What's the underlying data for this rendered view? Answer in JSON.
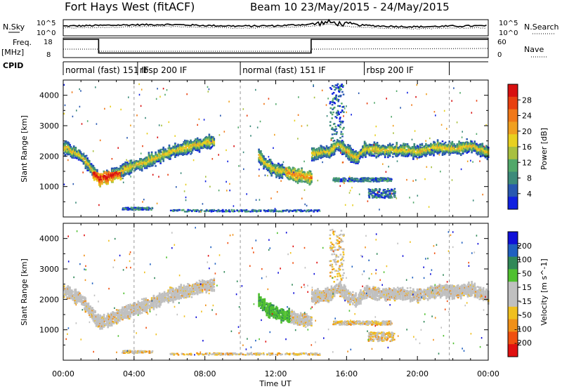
{
  "header": {
    "title": "Fort Hays West (fitACF)",
    "subtitle": "Beam 10 23/May/2015 - 24/May/2015"
  },
  "labels": {
    "nsky": "N.Sky",
    "nsearch": "N.Search",
    "freq": "Freq.",
    "freq_unit": "[MHz]",
    "nave": "Nave",
    "cpid": "CPID",
    "nsky_ticks": [
      "10^5",
      "10^0"
    ],
    "nsearch_ticks": [
      "10^5",
      "10^0"
    ],
    "freq_ticks": [
      "18",
      "8"
    ],
    "nave_ticks": [
      "60",
      "0"
    ]
  },
  "cpid_segments": [
    {
      "label": "normal (fast) 151 IF",
      "start_h": 0
    },
    {
      "label": "rbsp 200 IF",
      "start_h": 4.2
    },
    {
      "label": "normal (fast) 151 IF",
      "start_h": 10.0
    },
    {
      "label": "rbsp 200 IF",
      "start_h": 17.0
    }
  ],
  "colors": {
    "power": [
      "#1020e0",
      "#2858b0",
      "#3c8a7a",
      "#52a86a",
      "#a8c040",
      "#e8d020",
      "#f0a020",
      "#f07818",
      "#e84010",
      "#d81010"
    ],
    "velocity": [
      "#1010d8",
      "#2060c0",
      "#308858",
      "#50c030",
      "#c0c0c0",
      "#c0c0c0",
      "#f0c020",
      "#f09018",
      "#f05010",
      "#e01010"
    ]
  },
  "chart_data": [
    {
      "type": "line",
      "name": "sky-noise",
      "x": [
        0,
        2,
        4,
        6,
        8,
        10,
        12,
        14,
        15,
        16,
        18,
        20,
        22,
        24
      ],
      "y": [
        3.0,
        3.2,
        3.4,
        3.5,
        3.2,
        3.0,
        3.1,
        3.6,
        4.2,
        3.5,
        3.0,
        2.8,
        3.0,
        3.1
      ],
      "xlim": [
        0,
        24
      ]
    },
    {
      "type": "line",
      "name": "frequency",
      "x": [
        0,
        2.0,
        2.0,
        14.0,
        14.0,
        24
      ],
      "y": [
        18,
        18,
        10.5,
        10.5,
        18,
        18
      ],
      "xlim": [
        0,
        24
      ],
      "ylim": [
        8,
        18
      ]
    },
    {
      "type": "heatmap",
      "name": "power",
      "xlabel": "",
      "ylabel": "Slant Range [km]",
      "xlim": [
        0,
        24
      ],
      "ylim": [
        0,
        4500
      ],
      "yticks": [
        1000,
        2000,
        3000,
        4000
      ],
      "colorbar": {
        "label": "Power [dB]",
        "ticks": [
          4,
          8,
          12,
          16,
          20,
          24,
          28
        ]
      },
      "echo_bands": [
        {
          "x": [
            0,
            1,
            2,
            3,
            4,
            5,
            6,
            7,
            8,
            8.5
          ],
          "y": [
            2300,
            2000,
            1250,
            1450,
            1700,
            1900,
            2150,
            2300,
            2450,
            2500
          ]
        },
        {
          "x": [
            11.0,
            11.5,
            12,
            13,
            14
          ],
          "y": [
            2000,
            1700,
            1550,
            1400,
            1300
          ]
        },
        {
          "x": [
            14.0,
            15,
            15.5,
            16,
            16.5,
            17,
            18,
            19,
            20,
            21,
            22,
            23,
            24
          ],
          "y": [
            2100,
            2150,
            2400,
            2150,
            1950,
            2250,
            2200,
            2200,
            2150,
            2300,
            2250,
            2350,
            2100
          ]
        }
      ]
    },
    {
      "type": "heatmap",
      "name": "velocity",
      "xlabel": "Time UT",
      "ylabel": "Slant Range [km]",
      "xlim": [
        0,
        24
      ],
      "ylim": [
        0,
        4500
      ],
      "xticks": [
        "00:00",
        "04:00",
        "08:00",
        "12:00",
        "16:00",
        "20:00",
        "00:00"
      ],
      "yticks": [
        1000,
        2000,
        3000,
        4000
      ],
      "colorbar": {
        "label": "Velocity [m s^-1]",
        "ticks": [
          200,
          100,
          50,
          15,
          -15,
          -50,
          -100,
          -200
        ]
      },
      "echo_bands": [
        {
          "x": [
            0,
            1,
            2,
            3,
            4,
            5,
            6,
            7,
            8,
            8.5
          ],
          "y": [
            2300,
            2000,
            1250,
            1450,
            1700,
            1900,
            2150,
            2300,
            2450,
            2500
          ]
        },
        {
          "x": [
            11.0,
            11.5,
            12,
            13,
            14
          ],
          "y": [
            2000,
            1700,
            1550,
            1400,
            1300
          ]
        },
        {
          "x": [
            14.0,
            15,
            15.5,
            16,
            16.5,
            17,
            18,
            19,
            20,
            21,
            22,
            23,
            24
          ],
          "y": [
            2100,
            2150,
            2400,
            2150,
            1950,
            2250,
            2200,
            2200,
            2150,
            2300,
            2250,
            2350,
            2100
          ]
        }
      ]
    }
  ]
}
